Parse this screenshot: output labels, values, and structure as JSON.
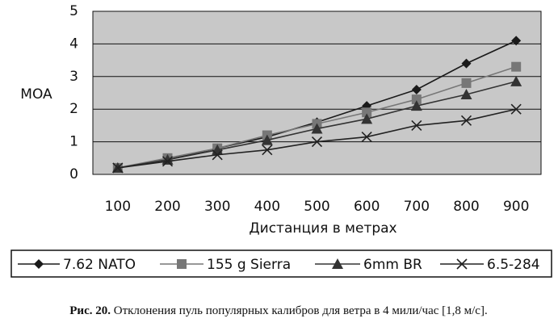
{
  "chart_data": {
    "type": "line",
    "y_label": "MOA",
    "x_label": "Дистанция в метрах",
    "categories": [
      "100",
      "200",
      "300",
      "400",
      "500",
      "600",
      "700",
      "800",
      "900"
    ],
    "ylim": [
      0,
      5
    ],
    "yticks": [
      0,
      1,
      2,
      3,
      4,
      5
    ],
    "grid": true,
    "series": [
      {
        "name": "7.62 NATO",
        "color": "#1a1a1a",
        "marker": "diamond",
        "values": [
          0.2,
          0.45,
          0.8,
          1.15,
          1.6,
          2.1,
          2.6,
          3.4,
          4.1
        ]
      },
      {
        "name": "155 g Sierra",
        "color": "#777777",
        "marker": "square",
        "values": [
          0.2,
          0.5,
          0.8,
          1.2,
          1.55,
          1.9,
          2.3,
          2.8,
          3.3
        ]
      },
      {
        "name": "6mm BR",
        "color": "#333333",
        "marker": "triangle",
        "values": [
          0.2,
          0.45,
          0.75,
          1.05,
          1.4,
          1.7,
          2.1,
          2.45,
          2.85
        ]
      },
      {
        "name": "6.5-284",
        "color": "#222222",
        "marker": "x",
        "values": [
          0.2,
          0.4,
          0.6,
          0.75,
          1.0,
          1.15,
          1.5,
          1.65,
          2.0
        ]
      }
    ],
    "caption_label": "Рис. 20.",
    "caption": "Отклонения пуль популярных калибров для ветра в 4 мили/час [1,8 м/с]."
  }
}
